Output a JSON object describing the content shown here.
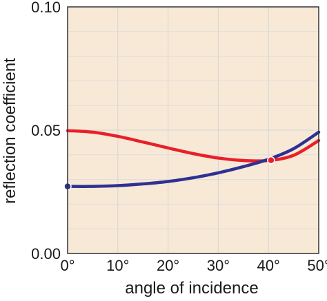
{
  "chart_data": {
    "type": "line",
    "title": "",
    "xlabel": "angle of incidence",
    "ylabel": "reflection coefficient",
    "xlim": [
      0,
      50
    ],
    "ylim": [
      0,
      0.1
    ],
    "x_ticks": [
      0,
      10,
      20,
      30,
      40,
      50
    ],
    "x_tick_labels": [
      "0°",
      "10°",
      "20°",
      "30°",
      "40°",
      "50°"
    ],
    "y_ticks": [
      0.0,
      0.05,
      0.1
    ],
    "y_tick_labels": [
      "0.00",
      "0.05",
      "0.10"
    ],
    "grid": true,
    "plot_background": "#f8e9d6",
    "series": [
      {
        "color": "#e8202a",
        "x": [
          0,
          5,
          10,
          15,
          20,
          25,
          30,
          35,
          40,
          45,
          50
        ],
        "y": [
          0.0498,
          0.0492,
          0.0475,
          0.0452,
          0.0428,
          0.0405,
          0.0387,
          0.0377,
          0.0377,
          0.0398,
          0.0458
        ],
        "markers": [
          {
            "x": 40.5,
            "y": 0.0378
          }
        ]
      },
      {
        "color": "#2e3192",
        "x": [
          0,
          5,
          10,
          15,
          20,
          25,
          30,
          35,
          40,
          45,
          50
        ],
        "y": [
          0.0272,
          0.0272,
          0.0275,
          0.0282,
          0.0292,
          0.0307,
          0.0327,
          0.0352,
          0.0382,
          0.0425,
          0.0492
        ],
        "markers": [
          {
            "x": 0,
            "y": 0.0272
          }
        ]
      }
    ]
  }
}
